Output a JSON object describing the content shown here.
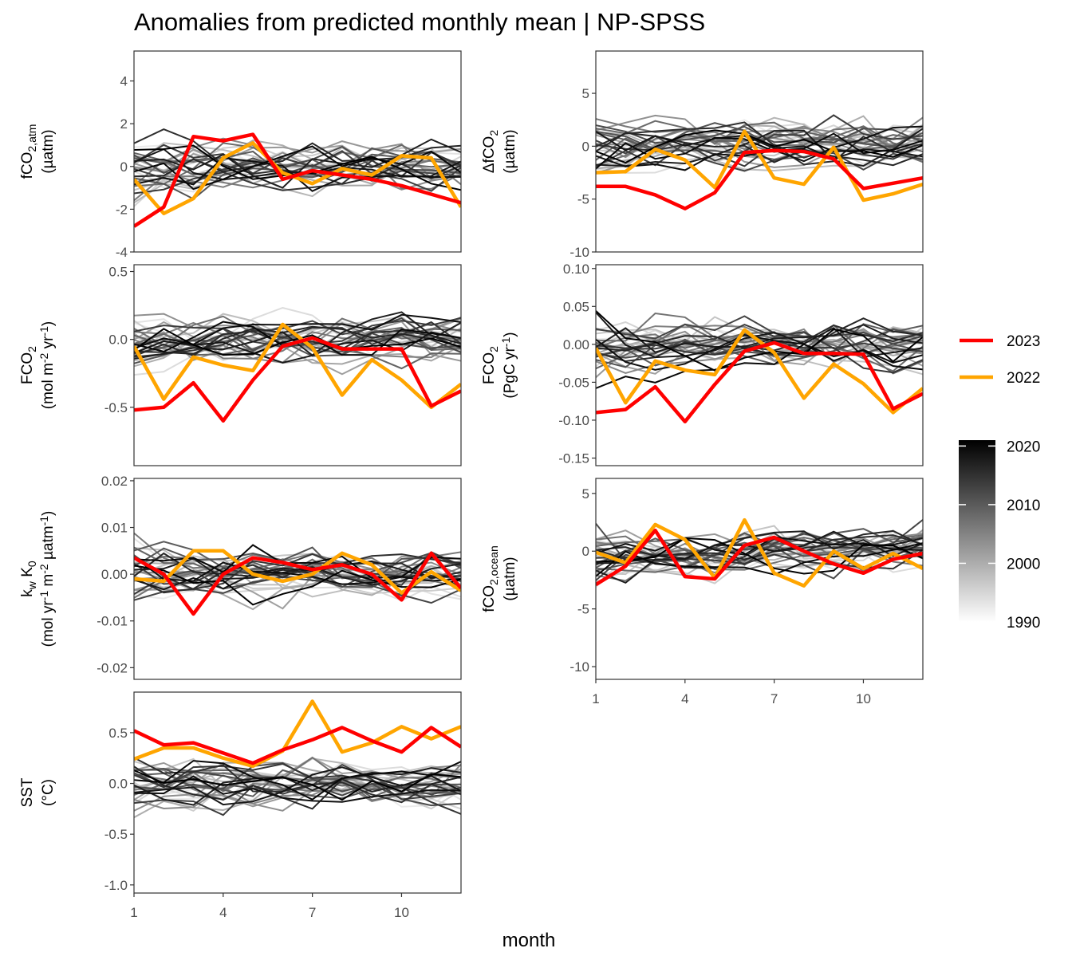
{
  "chart_data": {
    "type": "line",
    "title": "Anomalies from predicted monthly mean | NP-SPSS",
    "xlabel": "month",
    "x": [
      1,
      2,
      3,
      4,
      5,
      6,
      7,
      8,
      9,
      10,
      11,
      12
    ],
    "x_ticks": [
      "1",
      "4",
      "7",
      "10"
    ],
    "xlim": [
      1,
      12
    ],
    "legend": {
      "placement": "right",
      "highlight_series": [
        {
          "name": "2023",
          "color": "#ff0000"
        },
        {
          "name": "2022",
          "color": "#ffa500"
        }
      ],
      "colorbar": {
        "ticks": [
          "2020",
          "2010",
          "2000",
          "1990"
        ],
        "range": [
          1990,
          2021
        ],
        "low_color": "#ffffff",
        "high_color": "#000000"
      }
    },
    "panels": [
      {
        "id": "fco2atm",
        "ylabel_lines": [
          [
            "fCO",
            "2,atm",
            ""
          ],
          [
            "(µatm)"
          ]
        ],
        "ylim": [
          -4,
          5.4
        ],
        "y_ticks": [
          -4,
          -2,
          0,
          2,
          4
        ],
        "y_tick_labels": [
          "-4",
          "-2",
          "0",
          "2",
          "4"
        ],
        "series": [
          {
            "name": "2023",
            "values": [
              -2.8,
              -1.9,
              1.4,
              1.2,
              1.5,
              -0.6,
              -0.2,
              -0.4,
              -0.6,
              -0.9,
              -1.3,
              -1.7
            ]
          },
          {
            "name": "2022",
            "values": [
              -0.6,
              -2.2,
              -1.5,
              0.4,
              1.1,
              -0.3,
              -0.8,
              -0.1,
              -0.4,
              0.5,
              0.4,
              -1.9
            ]
          }
        ]
      },
      {
        "id": "dfco2",
        "ylabel_lines": [
          [
            "ΔfCO",
            "2",
            ""
          ],
          [
            "(µatm)"
          ]
        ],
        "ylim": [
          -10,
          9
        ],
        "y_ticks": [
          -10,
          -5,
          0,
          5
        ],
        "y_tick_labels": [
          "-10",
          "-5",
          "0",
          "5"
        ],
        "series": [
          {
            "name": "2023",
            "values": [
              -3.8,
              -3.8,
              -4.6,
              -5.9,
              -4.4,
              -0.6,
              -0.4,
              -0.5,
              -1.2,
              -4.0,
              -3.5,
              -3.0
            ]
          },
          {
            "name": "2022",
            "values": [
              -2.5,
              -2.4,
              -0.3,
              -1.3,
              -3.9,
              1.4,
              -3.0,
              -3.6,
              -0.1,
              -5.1,
              -4.5,
              -3.6
            ]
          }
        ]
      },
      {
        "id": "fco2mol",
        "ylabel_lines": [
          [
            "FCO",
            "2",
            ""
          ],
          [
            "(mol m",
            "-2",
            " yr",
            "-1",
            ")"
          ]
        ],
        "ylim": [
          -0.93,
          0.55
        ],
        "y_ticks": [
          -0.5,
          0.0,
          0.5
        ],
        "y_tick_labels": [
          "-0.5",
          "0.0",
          "0.5"
        ],
        "series": [
          {
            "name": "2023",
            "values": [
              -0.52,
              -0.5,
              -0.32,
              -0.6,
              -0.3,
              -0.05,
              0.01,
              -0.07,
              -0.07,
              -0.07,
              -0.49,
              -0.38
            ]
          },
          {
            "name": "2022",
            "values": [
              -0.05,
              -0.44,
              -0.13,
              -0.19,
              -0.23,
              0.11,
              -0.06,
              -0.41,
              -0.15,
              -0.3,
              -0.5,
              -0.33
            ]
          }
        ]
      },
      {
        "id": "fco2pgc",
        "ylabel_lines": [
          [
            "FCO",
            "2",
            ""
          ],
          [
            "(PgC yr",
            "-1",
            ")"
          ]
        ],
        "ylim": [
          -0.16,
          0.105
        ],
        "y_ticks": [
          -0.15,
          -0.1,
          -0.05,
          0.0,
          0.05,
          0.1
        ],
        "y_tick_labels": [
          "-0.15",
          "-0.10",
          "-0.05",
          "0.00",
          "0.05",
          "0.10"
        ],
        "series": [
          {
            "name": "2023",
            "values": [
              -0.09,
              -0.086,
              -0.056,
              -0.102,
              -0.053,
              -0.009,
              0.002,
              -0.012,
              -0.012,
              -0.013,
              -0.085,
              -0.065
            ]
          },
          {
            "name": "2022",
            "values": [
              -0.005,
              -0.077,
              -0.022,
              -0.034,
              -0.04,
              0.019,
              -0.011,
              -0.071,
              -0.026,
              -0.052,
              -0.09,
              -0.058
            ]
          }
        ]
      },
      {
        "id": "kwk0",
        "ylabel_lines": [
          [
            "k",
            "w",
            " K",
            "0",
            ""
          ],
          [
            "(mol yr",
            "-1",
            " m",
            "-2",
            " µatm",
            "-1",
            ")"
          ]
        ],
        "ylim": [
          -0.0225,
          0.0205
        ],
        "y_ticks": [
          -0.02,
          -0.01,
          0.0,
          0.01,
          0.02
        ],
        "y_tick_labels": [
          "-0.02",
          "-0.01",
          "0.00",
          "0.01",
          "0.02"
        ],
        "series": [
          {
            "name": "2023",
            "values": [
              0.0035,
              0.0,
              -0.0085,
              0.0,
              0.0035,
              0.0025,
              0.001,
              0.002,
              0.0,
              -0.0055,
              0.0045,
              -0.003
            ]
          },
          {
            "name": "2022",
            "values": [
              -0.001,
              -0.0015,
              0.005,
              0.005,
              0.0,
              -0.0015,
              0.0,
              0.0045,
              0.002,
              -0.004,
              0.0005,
              -0.0035
            ]
          }
        ]
      },
      {
        "id": "fco2ocean",
        "ylabel_lines": [
          [
            "fCO",
            "2,ocean",
            ""
          ],
          [
            "(µatm)"
          ]
        ],
        "ylim": [
          -11.1,
          6.3
        ],
        "y_ticks": [
          -10,
          -5,
          0,
          5
        ],
        "y_tick_labels": [
          "-10",
          "-5",
          "0",
          "5"
        ],
        "series": [
          {
            "name": "2023",
            "values": [
              -2.9,
              -1.3,
              1.8,
              -2.2,
              -2.4,
              0.5,
              1.2,
              0.0,
              -1.1,
              -1.9,
              -0.7,
              -0.2
            ]
          },
          {
            "name": "2022",
            "values": [
              -0.1,
              -1.0,
              2.3,
              1.0,
              -2.3,
              2.7,
              -1.9,
              -3.0,
              0.0,
              -1.5,
              -0.2,
              -1.5
            ]
          }
        ]
      },
      {
        "id": "sst",
        "ylabel_lines": [
          [
            "SST"
          ],
          [
            "(°C)"
          ]
        ],
        "ylim": [
          -1.08,
          0.9
        ],
        "y_ticks": [
          -1.0,
          -0.5,
          0.0,
          0.5
        ],
        "y_tick_labels": [
          "-1.0",
          "-0.5",
          "0.0",
          "0.5"
        ],
        "series": [
          {
            "name": "2023",
            "values": [
              0.52,
              0.38,
              0.4,
              0.3,
              0.2,
              0.33,
              0.43,
              0.55,
              0.42,
              0.31,
              0.55,
              0.36
            ]
          },
          {
            "name": "2022",
            "values": [
              0.24,
              0.35,
              0.35,
              0.25,
              0.17,
              0.32,
              0.81,
              0.31,
              0.4,
              0.56,
              0.44,
              0.56
            ]
          }
        ]
      }
    ]
  }
}
